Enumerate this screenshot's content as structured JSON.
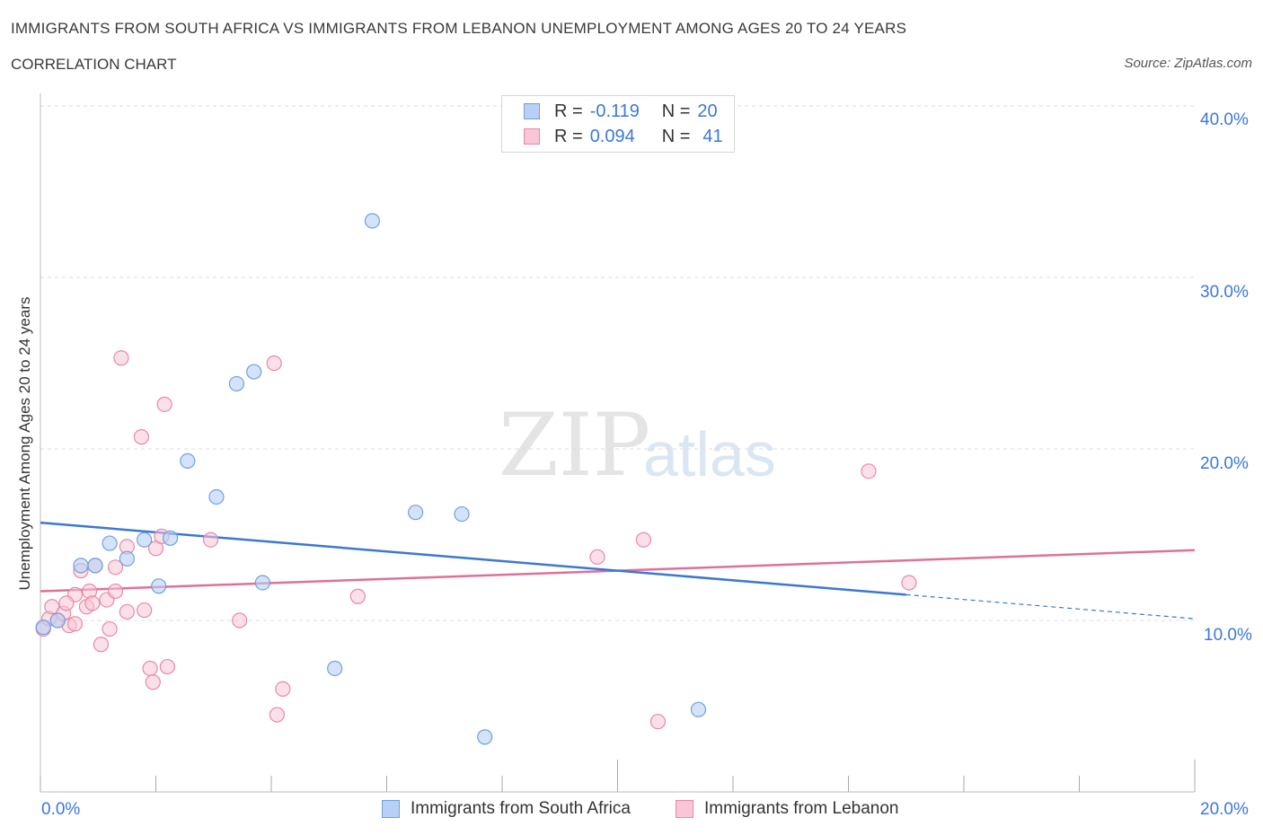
{
  "title": "IMMIGRANTS FROM SOUTH AFRICA VS IMMIGRANTS FROM LEBANON UNEMPLOYMENT AMONG AGES 20 TO 24 YEARS",
  "subtitle": "CORRELATION CHART",
  "source": "Source: ZipAtlas.com",
  "watermark": {
    "zip": "ZIP",
    "atlas": "atlas"
  },
  "legend": {
    "r_label": "R =",
    "n_label": "N =",
    "south_africa": {
      "r": "-0.119",
      "n": "20"
    },
    "lebanon": {
      "r": "0.094",
      "n": "41"
    }
  },
  "chart_data": {
    "type": "scatter",
    "title": "IMMIGRANTS FROM SOUTH AFRICA VS IMMIGRANTS FROM LEBANON UNEMPLOYMENT AMONG AGES 20 TO 24 YEARS",
    "xlabel": "",
    "ylabel": "Unemployment Among Ages 20 to 24 years",
    "xlim": [
      0,
      20
    ],
    "ylim": [
      0,
      40
    ],
    "x_tick_labels": [
      "0.0%",
      "20.0%"
    ],
    "y_tick_labels": [
      "10.0%",
      "20.0%",
      "30.0%",
      "40.0%"
    ],
    "y_ticks": [
      10,
      20,
      30,
      40
    ],
    "grid": true,
    "legend_position": "bottom",
    "series": [
      {
        "name": "Immigrants from South Africa",
        "color": "#6fa0e0",
        "fill": "#b8d0f5",
        "points": [
          [
            0.05,
            9.6
          ],
          [
            0.3,
            10.0
          ],
          [
            0.7,
            13.2
          ],
          [
            0.95,
            13.2
          ],
          [
            1.2,
            14.5
          ],
          [
            1.5,
            13.6
          ],
          [
            1.8,
            14.7
          ],
          [
            2.05,
            12.0
          ],
          [
            2.25,
            14.8
          ],
          [
            2.55,
            19.3
          ],
          [
            3.05,
            17.2
          ],
          [
            3.4,
            23.8
          ],
          [
            3.7,
            24.5
          ],
          [
            3.85,
            12.2
          ],
          [
            5.1,
            7.2
          ],
          [
            5.75,
            33.3
          ],
          [
            6.5,
            16.3
          ],
          [
            7.3,
            16.2
          ],
          [
            7.7,
            3.2
          ],
          [
            11.4,
            4.8
          ]
        ],
        "trend": {
          "x0": 0,
          "y0": 15.7,
          "x1": 15.0,
          "y1": 11.5,
          "dash_to_x": 20,
          "dash_to_y": 10.1
        }
      },
      {
        "name": "Immigrants from Lebanon",
        "color": "#e888a8",
        "fill": "#f8c6d6",
        "points": [
          [
            0.05,
            9.5
          ],
          [
            0.15,
            10.1
          ],
          [
            0.2,
            10.8
          ],
          [
            0.3,
            10.0
          ],
          [
            0.4,
            10.4
          ],
          [
            0.5,
            9.7
          ],
          [
            0.6,
            11.5
          ],
          [
            0.7,
            12.9
          ],
          [
            0.8,
            10.8
          ],
          [
            0.85,
            11.7
          ],
          [
            0.9,
            11.0
          ],
          [
            0.95,
            13.2
          ],
          [
            1.05,
            8.6
          ],
          [
            1.15,
            11.2
          ],
          [
            1.2,
            9.5
          ],
          [
            1.3,
            11.7
          ],
          [
            1.3,
            13.1
          ],
          [
            1.4,
            25.3
          ],
          [
            1.5,
            14.3
          ],
          [
            1.5,
            10.5
          ],
          [
            1.75,
            20.7
          ],
          [
            1.8,
            10.6
          ],
          [
            1.9,
            7.2
          ],
          [
            1.95,
            6.4
          ],
          [
            2.0,
            14.2
          ],
          [
            2.1,
            14.9
          ],
          [
            2.15,
            22.6
          ],
          [
            2.2,
            7.3
          ],
          [
            2.95,
            14.7
          ],
          [
            3.45,
            10.0
          ],
          [
            4.05,
            25.0
          ],
          [
            4.1,
            4.5
          ],
          [
            4.2,
            6.0
          ],
          [
            5.5,
            11.4
          ],
          [
            9.65,
            13.7
          ],
          [
            10.45,
            14.7
          ],
          [
            10.7,
            4.1
          ],
          [
            14.35,
            18.7
          ],
          [
            15.05,
            12.2
          ],
          [
            0.45,
            11.0
          ],
          [
            0.6,
            9.8
          ]
        ],
        "trend": {
          "x0": 0,
          "y0": 11.7,
          "x1": 20,
          "y1": 14.1
        }
      }
    ]
  }
}
